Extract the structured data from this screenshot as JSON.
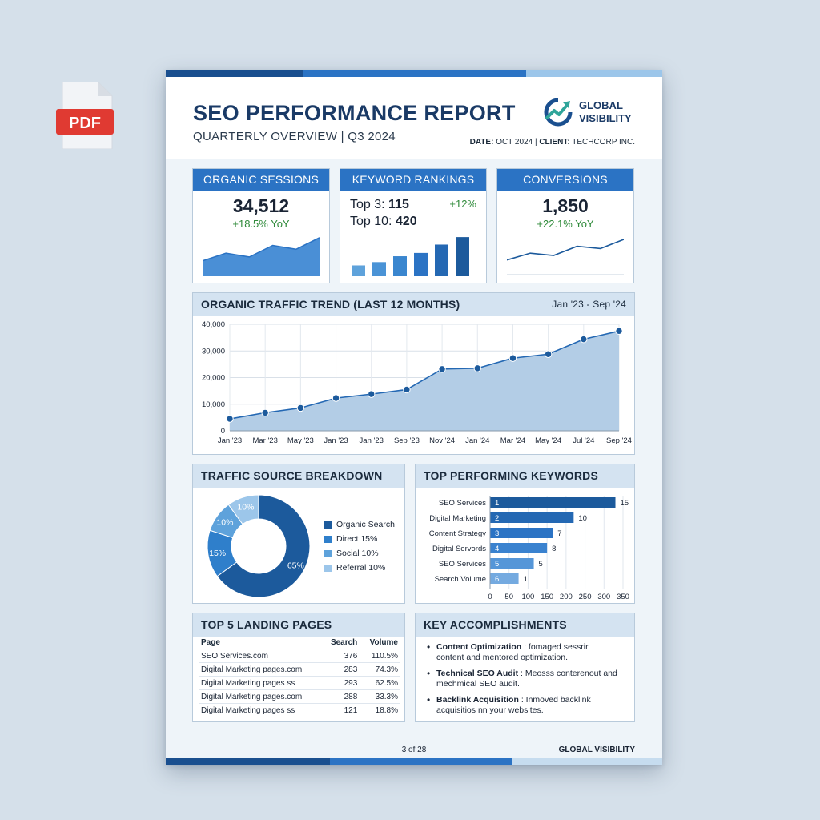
{
  "file_icon": {
    "label": "PDF",
    "color": "#e03a32"
  },
  "report": {
    "title": "SEO PERFORMANCE REPORT",
    "subtitle": "QUARTERLY OVERVIEW | Q3 2024",
    "logo_line1": "GLOBAL",
    "logo_line2": "VISIBILITY",
    "date_label": "DATE:",
    "date_value": "OCT 2024",
    "separator": "|",
    "client_label": "CLIENT:",
    "client_value": "TECHCORP INC."
  },
  "colors": {
    "primary": "#2b73c4",
    "navy": "#1a4f8f",
    "light": "#d4e3f1",
    "positive": "#2f8a3a"
  },
  "kpis": {
    "organic": {
      "title": "ORGANIC SESSIONS",
      "value": "34,512",
      "delta": "+18.5% YoY",
      "spark": [
        12,
        18,
        15,
        24,
        21,
        30
      ]
    },
    "keywords": {
      "title": "KEYWORD RANKINGS",
      "top3_label": "Top 3:",
      "top3_value": "115",
      "top10_label": "Top 10:",
      "top10_value": "420",
      "delta": "+12%",
      "bars": [
        13,
        17,
        24,
        28,
        38,
        47
      ]
    },
    "conversions": {
      "title": "CONVERSIONS",
      "value": "1,850",
      "delta": "+22.1% YoY",
      "spark": [
        10,
        16,
        14,
        22,
        20,
        28
      ]
    }
  },
  "trend": {
    "title": "ORGANIC TRAFFIC TREND (LAST 12 MONTHS)",
    "range": "Jan '23 - Sep '24"
  },
  "chart_data": [
    {
      "type": "area",
      "title": "ORGANIC TRAFFIC TREND (LAST 12 MONTHS)",
      "categories": [
        "Jan '23",
        "Mar '23",
        "May '23",
        "Jan '23",
        "Jan '23",
        "Sep '23",
        "Nov '24",
        "Jan '24",
        "Mar '24",
        "May '24",
        "Jul '24",
        "Sep '24"
      ],
      "values": [
        4500,
        6800,
        8600,
        12300,
        13800,
        15500,
        23200,
        23500,
        27300,
        28800,
        34400,
        37500
      ],
      "yticks": [
        "0",
        "10,000",
        "20,000",
        "30,000",
        "40,000"
      ],
      "ylim": [
        0,
        40000
      ],
      "grid": true
    },
    {
      "type": "pie",
      "title": "TRAFFIC SOURCE BREAKDOWN",
      "slices": [
        {
          "label": "65%",
          "value": 65,
          "color": "#1c5a9c"
        },
        {
          "label": "15%",
          "value": 15,
          "color": "#2f7fcb"
        },
        {
          "label": "10%",
          "value": 10,
          "color": "#5ea2db"
        },
        {
          "label": "10%",
          "value": 10,
          "color": "#9cc6ea"
        }
      ],
      "legend": [
        {
          "label": "Organic Search",
          "color": "#1c5a9c"
        },
        {
          "label": "Direct 15%",
          "color": "#2f7fcb"
        },
        {
          "label": "Social 10%",
          "color": "#5ea2db"
        },
        {
          "label": "Referral 10%",
          "color": "#9cc6ea"
        }
      ],
      "legend_placement": "right"
    },
    {
      "type": "bar",
      "title": "TOP PERFORMING KEYWORDS",
      "orientation": "horizontal",
      "categories": [
        "SEO Services",
        "Digital Marketing",
        "Content Strategy",
        "Digital Servords",
        "SEO Services",
        "Search Volume"
      ],
      "ranks": [
        "1",
        "2",
        "3",
        "4",
        "5",
        "6"
      ],
      "values": [
        330,
        220,
        165,
        150,
        115,
        75
      ],
      "value_labels": [
        "15",
        "10",
        "7",
        "8",
        "5",
        "1"
      ],
      "xticks": [
        "0",
        "50",
        "100",
        "150",
        "200",
        "250",
        "300",
        "350"
      ],
      "xlim": [
        0,
        350
      ],
      "colors": [
        "#1c5a9c",
        "#2468b3",
        "#2b73c4",
        "#3a82cf",
        "#5596d8",
        "#74aae0"
      ]
    }
  ],
  "landing": {
    "title": "TOP 5 LANDING PAGES",
    "headers": [
      "Page",
      "Search",
      "Volume"
    ],
    "rows": [
      [
        "SEO Services.com",
        "376",
        "110.5%"
      ],
      [
        "Digital Marketing pages.com",
        "283",
        "74.3%"
      ],
      [
        "Digital Marketing pages ss",
        "293",
        "62.5%"
      ],
      [
        "Digital Marketing pages.com",
        "288",
        "33.3%"
      ],
      [
        "Digital Marketing pages ss",
        "121",
        "18.8%"
      ]
    ]
  },
  "accomplishments": {
    "title": "KEY ACCOMPLISHMENTS",
    "items": [
      {
        "head": "Content Optimization",
        "text": ": fomaged sessrir. content and mentored optimization."
      },
      {
        "head": "Technical SEO Audit",
        "text": ": Meosss conterenout and mechmical SEO audit."
      },
      {
        "head": "Backlink Acquisition",
        "text": ": Inmoved backlink acquisitios nn your websites."
      }
    ]
  },
  "footer": {
    "page": "3 of 28",
    "brand": "GLOBAL VISIBILITY"
  }
}
